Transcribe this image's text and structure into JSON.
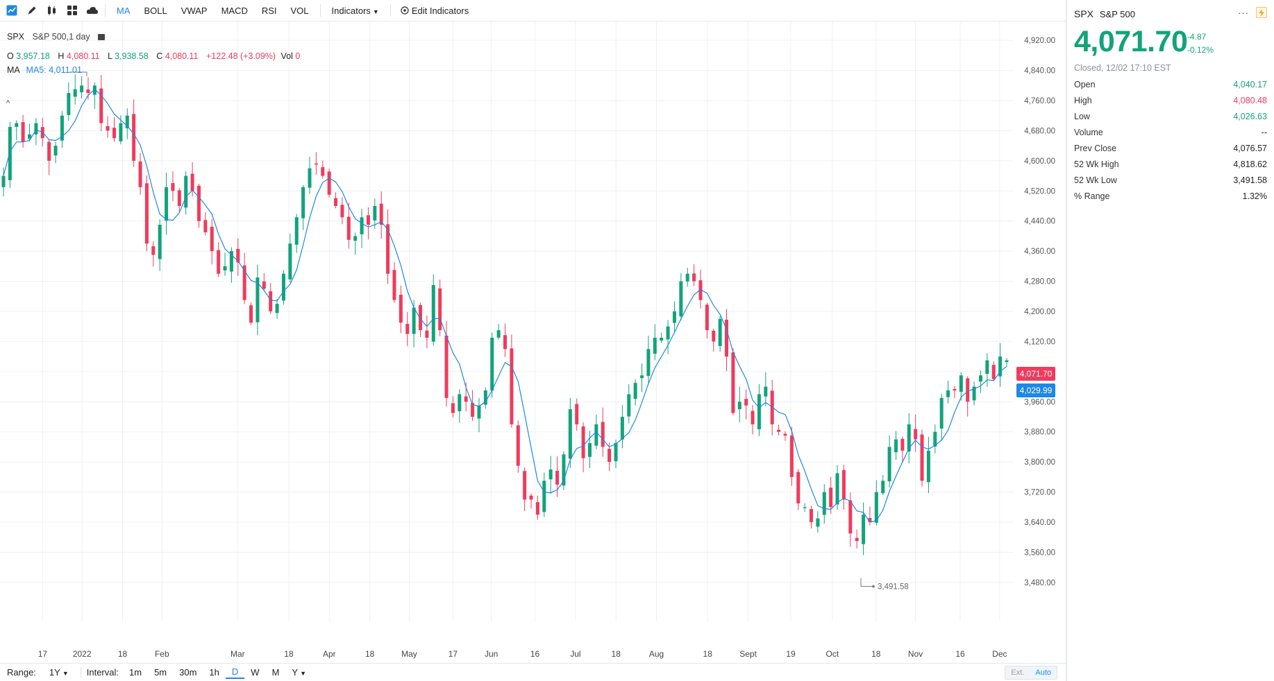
{
  "toolbar": {
    "indicators": [
      "MA",
      "BOLL",
      "VWAP",
      "MACD",
      "RSI",
      "VOL"
    ],
    "active_indicator": "MA",
    "indicators_dropdown": "Indicators",
    "edit_indicators": "Edit Indicators",
    "icons": [
      "chart-type-icon",
      "draw-pencil-icon",
      "candles-icon",
      "layout-icon",
      "cloud-icon"
    ]
  },
  "legend": {
    "symbol": "SPX",
    "title": "S&P 500,1 day",
    "o_label": "O",
    "o_val": "3,957.18",
    "h_label": "H",
    "h_val": "4,080.11",
    "l_label": "L",
    "l_val": "3,938.58",
    "c_label": "C",
    "c_val": "4,080.11",
    "change": "+122.48 (+3.09%)",
    "vol_label": "Vol",
    "vol_val": "0",
    "ma_label": "MA",
    "ma_val": "MA5: 4,011.01"
  },
  "price_tags": {
    "last": "4,071.70",
    "ma": "4,029.99"
  },
  "low_marker": "3,491.58",
  "bottombar": {
    "range_label": "Range:",
    "range_value": "1Y",
    "interval_label": "Interval:",
    "intervals": [
      "1m",
      "5m",
      "30m",
      "1h",
      "D",
      "W",
      "M",
      "Y"
    ],
    "active_interval": "D",
    "ext": "Ext.",
    "auto": "Auto"
  },
  "quote": {
    "symbol": "SPX",
    "name": "S&P 500",
    "price": "4,071.70",
    "change": "-4.87",
    "change_pct": "-0.12%",
    "status": "Closed, 12/02 17:10 EST",
    "stats": [
      {
        "label": "Open",
        "value": "4,040.17",
        "tone": "grn"
      },
      {
        "label": "High",
        "value": "4,080.48",
        "tone": "red"
      },
      {
        "label": "Low",
        "value": "4,026.63",
        "tone": "grn"
      },
      {
        "label": "Volume",
        "value": "--",
        "tone": ""
      },
      {
        "label": "Prev Close",
        "value": "4,076.57",
        "tone": ""
      },
      {
        "label": "52 Wk High",
        "value": "4,818.62",
        "tone": ""
      },
      {
        "label": "52 Wk Low",
        "value": "3,491.58",
        "tone": ""
      },
      {
        "label": "% Range",
        "value": "1.32%",
        "tone": ""
      }
    ]
  },
  "colors": {
    "up": "#12a37a",
    "down": "#ef3b5d",
    "ma_line": "#1e88e5",
    "grid": "#eef0f3"
  },
  "chart_data": {
    "type": "candlestick",
    "series_name": "S&P 500",
    "ma_series_name": "MA5",
    "y_ticks": [
      4920,
      4840,
      4760,
      4680,
      4600,
      4520,
      4440,
      4360,
      4280,
      4200,
      4120,
      4040,
      3960,
      3880,
      3800,
      3720,
      3640,
      3560,
      3480
    ],
    "y_tick_labels": [
      "4,920.00",
      "4,840.00",
      "4,760.00",
      "4,680.00",
      "4,600.00",
      "4,520.00",
      "4,440.00",
      "4,360.00",
      "4,280.00",
      "4,200.00",
      "4,120.00",
      "4,040.00",
      "3,960.00",
      "3,880.00",
      "3,800.00",
      "3,720.00",
      "3,640.00",
      "3,560.00",
      "3,480.00"
    ],
    "ylim": [
      3395,
      4970
    ],
    "x_labels": [
      "17",
      "2022",
      "18",
      "Feb",
      "Mar",
      "18",
      "Apr",
      "18",
      "May",
      "17",
      "Jun",
      "16",
      "Jul",
      "18",
      "Aug",
      "18",
      "Sept",
      "19",
      "Oct",
      "18",
      "Nov",
      "16",
      "Dec"
    ],
    "x_label_fracs": [
      0.04,
      0.077,
      0.115,
      0.152,
      0.223,
      0.271,
      0.309,
      0.347,
      0.384,
      0.425,
      0.461,
      0.502,
      0.54,
      0.578,
      0.616,
      0.664,
      0.702,
      0.742,
      0.781,
      0.822,
      0.859,
      0.901,
      0.938
    ],
    "close_path": [
      4560,
      4690,
      4700,
      4650,
      4670,
      4700,
      4660,
      4600,
      4640,
      4720,
      4780,
      4790,
      4800,
      4780,
      4800,
      4700,
      4680,
      4660,
      4700,
      4720,
      4600,
      4530,
      4380,
      4350,
      4430,
      4530,
      4520,
      4480,
      4560,
      4520,
      4440,
      4410,
      4360,
      4300,
      4320,
      4360,
      4330,
      4230,
      4170,
      4290,
      4260,
      4200,
      4220,
      4300,
      4380,
      4450,
      4530,
      4580,
      4590,
      4560,
      4510,
      4480,
      4450,
      4390,
      4400,
      4450,
      4430,
      4480,
      4430,
      4300,
      4230,
      4170,
      4140,
      4210,
      4150,
      4130,
      4270,
      4150,
      3970,
      3930,
      3980,
      3960,
      3920,
      3950,
      3990,
      4130,
      4150,
      4100,
      3900,
      3790,
      3700,
      3700,
      3660,
      3750,
      3780,
      3740,
      3820,
      3940,
      3900,
      3810,
      3850,
      3900,
      3840,
      3800,
      3850,
      3920,
      3980,
      4010,
      4030,
      4100,
      4130,
      4130,
      4160,
      4200,
      4280,
      4300,
      4280,
      4230,
      4150,
      4120,
      4180,
      4080,
      3930,
      3960,
      3950,
      3900,
      3980,
      4000,
      3900,
      3880,
      3870,
      3760,
      3690,
      3680,
      3640,
      3650,
      3720,
      3680,
      3770,
      3700,
      3610,
      3590,
      3660,
      3640,
      3720,
      3750,
      3840,
      3860,
      3830,
      3900,
      3860,
      3750,
      3830,
      3880,
      3970,
      3990,
      3990,
      4030,
      3960,
      4000,
      4030,
      4070,
      4020,
      4080,
      4070
    ],
    "ma_last": 4011.01,
    "low_52wk": 3491.58
  }
}
